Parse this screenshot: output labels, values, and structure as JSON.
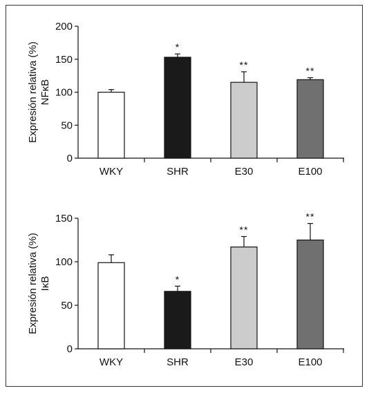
{
  "chart_data": [
    {
      "type": "bar",
      "ylabel": [
        "Expresión relativa (%)",
        "NFκB"
      ],
      "xlabel": "",
      "categories": [
        "WKY",
        "SHR",
        "E30",
        "E100"
      ],
      "values": [
        100,
        153,
        115,
        119
      ],
      "errors": [
        4,
        5,
        16,
        3
      ],
      "significance": [
        "",
        "*",
        "**",
        "**"
      ],
      "colors": [
        "#ffffff",
        "#1a1a1a",
        "#cccccc",
        "#707070"
      ],
      "ylim": [
        0,
        200
      ],
      "yticks": [
        0,
        50,
        100,
        150,
        200
      ],
      "grid": false
    },
    {
      "type": "bar",
      "ylabel": [
        "Expresión relativa (%)",
        "IκB"
      ],
      "xlabel": "",
      "categories": [
        "WKY",
        "SHR",
        "E30",
        "E100"
      ],
      "values": [
        99,
        66,
        117,
        125
      ],
      "errors": [
        9,
        6,
        12,
        19
      ],
      "significance": [
        "",
        "*",
        "**",
        "**"
      ],
      "colors": [
        "#ffffff",
        "#1a1a1a",
        "#cccccc",
        "#707070"
      ],
      "ylim": [
        0,
        150
      ],
      "yticks": [
        0,
        50,
        100,
        150
      ],
      "grid": false
    }
  ]
}
